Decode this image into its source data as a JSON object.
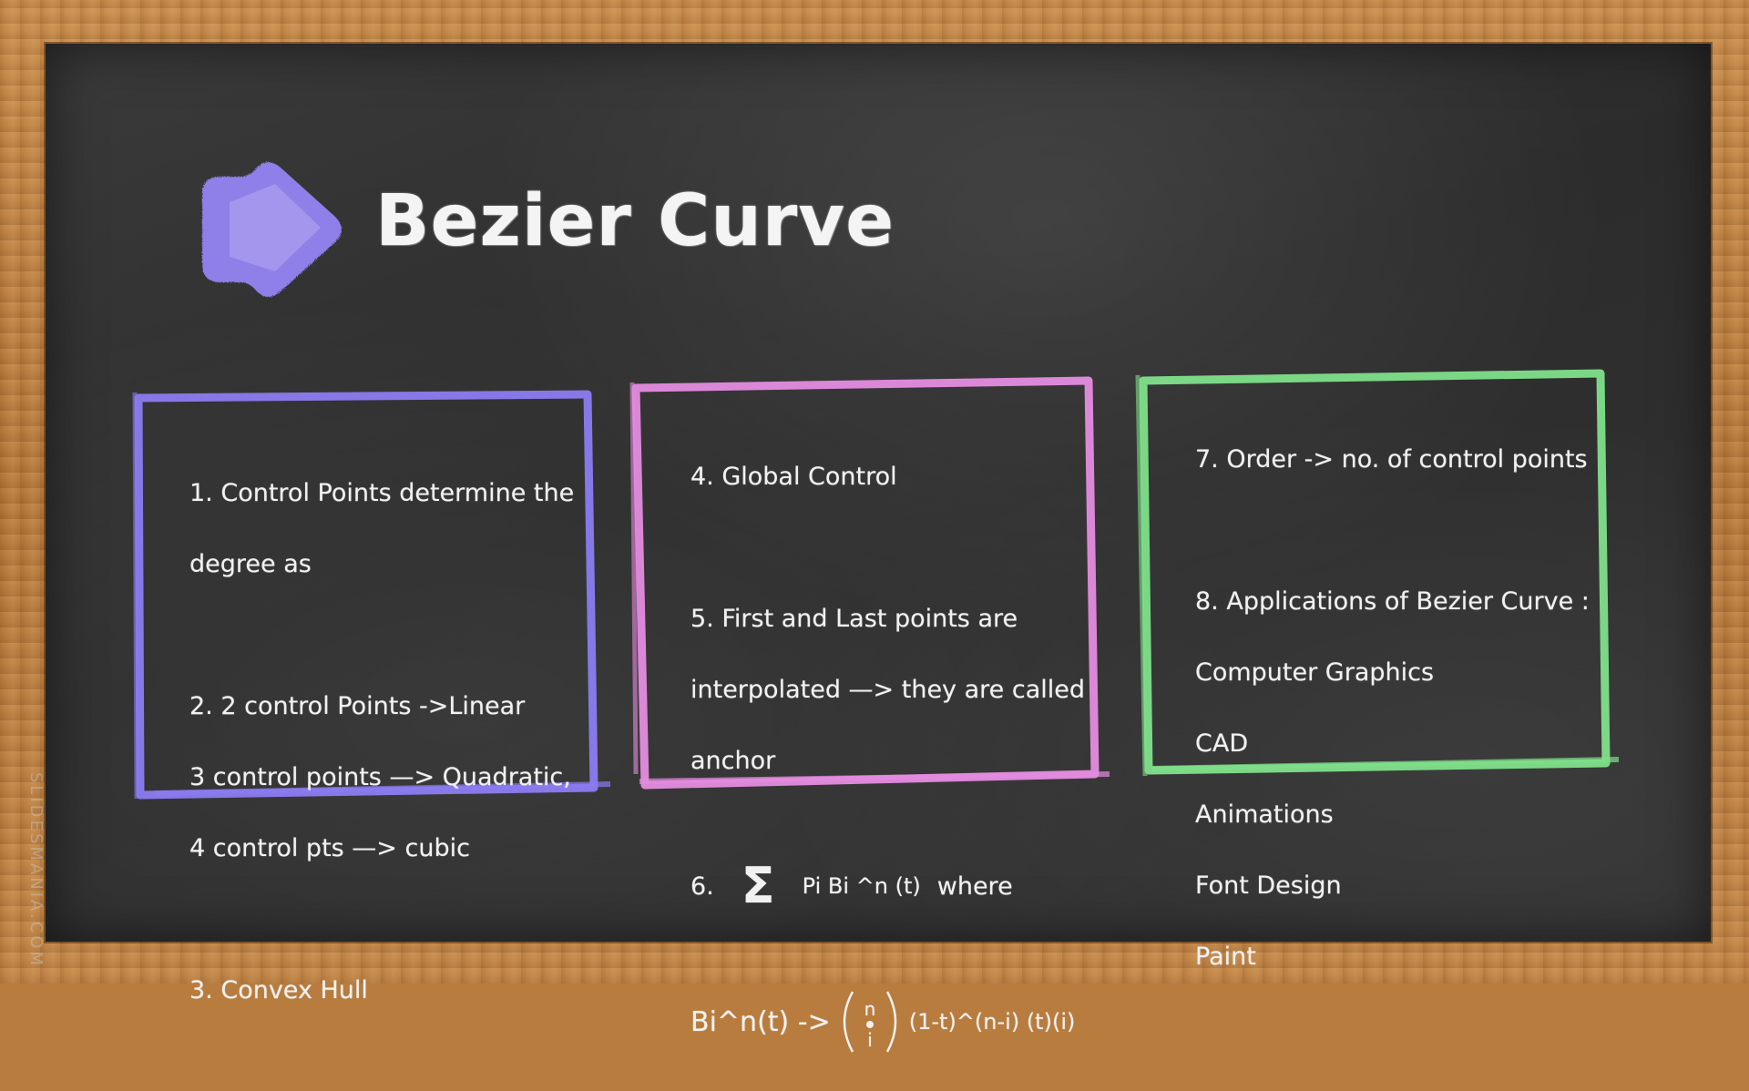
{
  "title": "Bezier Curve",
  "watermark": "SLIDESMANIA.COM",
  "colors": {
    "box1_border": "#8b7cf0",
    "box2_border": "#e58ce0",
    "box3_border": "#7fe08a",
    "logo": "#8f7fe8"
  },
  "logo_icon": "chalk-play-arrow-icon",
  "box1": {
    "lines_a": [
      "1. Control Points determine the",
      "degree as"
    ],
    "lines_b": [
      "2.  2 control Points ->Linear",
      "3 control points —> Quadratic,",
      "4 control pts —> cubic"
    ],
    "lines_c": [
      "3. Convex Hull"
    ]
  },
  "box2": {
    "line_4": "4. Global Control",
    "lines_5": [
      "5. First and Last points are",
      "interpolated —> they are called",
      "anchor"
    ],
    "formula_6": {
      "number": "6.",
      "sigma": "Σ",
      "expr": "Pi Bi ^n (t)",
      "where": "where"
    },
    "formula_b": {
      "left": "Bi^n(t) ->",
      "binom_top": "n",
      "binom_bottom": "i",
      "right": "(1-t)^(n-i) (t)(i)"
    }
  },
  "box3": {
    "line_7": "7. Order -> no. of control points",
    "line_8": "8. Applications of Bezier Curve :",
    "applications": [
      "Computer Graphics",
      "CAD",
      "Animations",
      "Font Design",
      "Paint"
    ]
  }
}
